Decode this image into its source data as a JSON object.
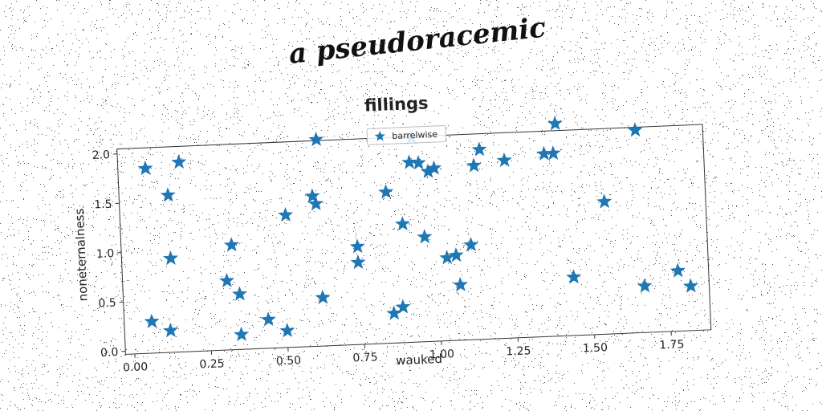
{
  "figure": {
    "supertitle": "a pseudoracemic"
  },
  "chart_data": {
    "type": "scatter",
    "title": "fillings",
    "xlabel": "wauked",
    "ylabel": "noneternalness",
    "xlim": [
      -0.03,
      1.88
    ],
    "ylim": [
      -0.03,
      2.05
    ],
    "xticks": [
      "0.00",
      "0.25",
      "0.50",
      "0.75",
      "1.00",
      "1.25",
      "1.50",
      "1.75"
    ],
    "yticks": [
      "0.0",
      "0.5",
      "1.0",
      "1.5",
      "2.0"
    ],
    "grid": false,
    "legend_position": "top-center",
    "marker": "star",
    "color": "#1f77b4",
    "series": [
      {
        "name": "barrelwise",
        "x": [
          0.06,
          0.13,
          0.17,
          0.06,
          0.12,
          0.13,
          0.33,
          0.31,
          0.35,
          0.35,
          0.44,
          0.5,
          0.51,
          0.6,
          0.61,
          0.62,
          0.74,
          0.74,
          0.84,
          0.85,
          0.88,
          0.89,
          0.92,
          0.93,
          0.95,
          0.96,
          0.98,
          1.0,
          1.03,
          1.06,
          1.07,
          1.11,
          1.13,
          1.15,
          1.23,
          1.36,
          1.39,
          1.4,
          1.44,
          1.55,
          1.66,
          1.67,
          1.78,
          1.82,
          0.62
        ],
        "y": [
          1.84,
          1.56,
          1.89,
          0.29,
          0.19,
          0.92,
          1.03,
          0.67,
          0.53,
          0.12,
          0.26,
          0.14,
          1.31,
          1.49,
          1.41,
          0.46,
          0.96,
          0.8,
          1.5,
          0.27,
          0.33,
          1.17,
          1.79,
          2.04,
          1.78,
          1.03,
          1.69,
          1.72,
          0.81,
          0.83,
          0.53,
          0.93,
          1.73,
          1.89,
          1.77,
          1.82,
          1.82,
          2.12,
          0.56,
          1.31,
          2.02,
          0.44,
          0.58,
          0.42,
          2.06
        ]
      }
    ]
  }
}
